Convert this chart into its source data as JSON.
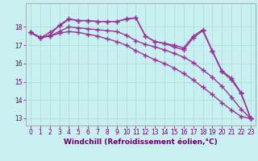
{
  "background_color": "#c8f0f0",
  "grid_color": "#b0dede",
  "line_color": "#993399",
  "marker": "+",
  "markersize": 4,
  "linewidth": 1.0,
  "xlabel": "Windchill (Refroidissement éolien,°C)",
  "xlabel_fontsize": 6.5,
  "tick_fontsize": 5.5,
  "xlim": [
    -0.5,
    23.5
  ],
  "ylim": [
    12.6,
    19.3
  ],
  "yticks": [
    13,
    14,
    15,
    16,
    17,
    18
  ],
  "xticks": [
    0,
    1,
    2,
    3,
    4,
    5,
    6,
    7,
    8,
    9,
    10,
    11,
    12,
    13,
    14,
    15,
    16,
    17,
    18,
    19,
    20,
    21,
    22,
    23
  ],
  "series": [
    [
      17.7,
      17.4,
      17.55,
      18.1,
      18.45,
      18.35,
      18.35,
      18.3,
      18.3,
      18.3,
      18.45,
      18.5,
      17.5,
      17.2,
      17.1,
      17.0,
      16.85,
      17.5,
      17.85,
      16.7,
      15.6,
      15.2,
      14.4,
      13.0
    ],
    [
      17.7,
      17.4,
      17.7,
      18.05,
      18.42,
      18.35,
      18.35,
      18.3,
      18.3,
      18.3,
      18.42,
      18.5,
      17.5,
      17.2,
      17.1,
      16.9,
      16.75,
      17.4,
      17.8,
      16.65,
      15.55,
      15.1,
      14.35,
      13.0
    ],
    [
      17.7,
      17.4,
      17.5,
      17.75,
      18.0,
      17.95,
      17.9,
      17.85,
      17.8,
      17.75,
      17.55,
      17.25,
      17.05,
      16.9,
      16.75,
      16.55,
      16.35,
      16.05,
      15.65,
      15.25,
      14.75,
      14.15,
      13.5,
      13.0
    ],
    [
      17.7,
      17.45,
      17.5,
      17.65,
      17.75,
      17.7,
      17.6,
      17.5,
      17.35,
      17.2,
      17.0,
      16.7,
      16.45,
      16.2,
      16.0,
      15.75,
      15.45,
      15.1,
      14.7,
      14.3,
      13.85,
      13.45,
      13.1,
      13.0
    ]
  ]
}
